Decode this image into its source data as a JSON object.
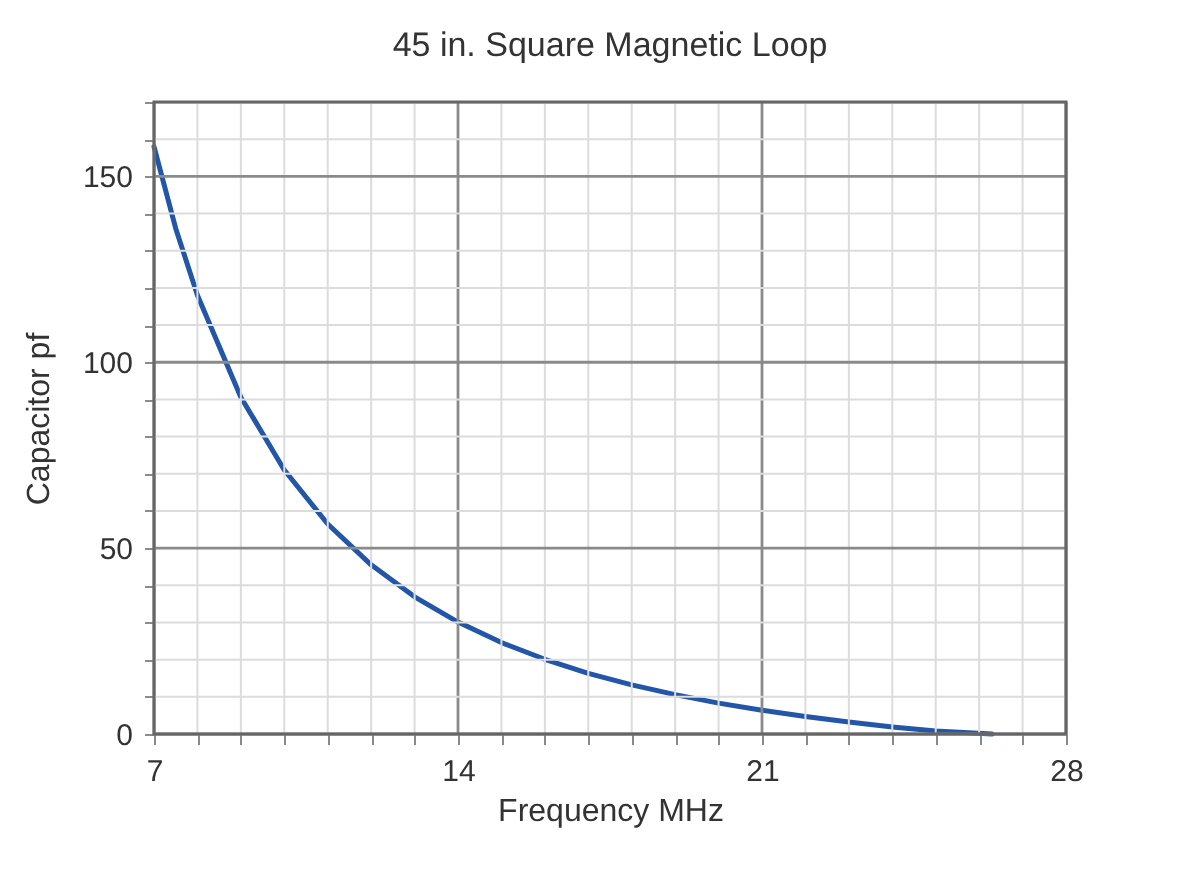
{
  "chart_data": {
    "type": "line",
    "title": "45 in. Square Magnetic Loop",
    "xlabel": "Frequency MHz",
    "ylabel": "Capacitor pf",
    "x": [
      7,
      7.5,
      8,
      9,
      10,
      11,
      12,
      13,
      14,
      15,
      16,
      17,
      18,
      19,
      20,
      21,
      22,
      23,
      24,
      25,
      26.3
    ],
    "series": [
      {
        "color": "#2456a8",
        "values": [
          158,
          136,
          118,
          90.6,
          71,
          56.5,
          45.5,
          36.9,
          30.1,
          24.6,
          20.1,
          16.3,
          13.2,
          10.6,
          8.3,
          6.4,
          4.7,
          3.2,
          1.9,
          0.8,
          0
        ]
      }
    ],
    "xlim": [
      7,
      28
    ],
    "ylim": [
      0,
      170
    ],
    "xticks": [
      7,
      {
        "value": 8,
        "label": null
      },
      {
        "value": 9,
        "label": null
      },
      {
        "value": 10,
        "label": null
      },
      {
        "value": 11,
        "label": null
      },
      {
        "value": 12,
        "label": null
      },
      {
        "value": 13,
        "label": null
      },
      14,
      {
        "value": 15,
        "label": null
      },
      {
        "value": 16,
        "label": null
      },
      {
        "value": 17,
        "label": null
      },
      {
        "value": 18,
        "label": null
      },
      {
        "value": 19,
        "label": null
      },
      {
        "value": 20,
        "label": null
      },
      21,
      {
        "value": 22,
        "label": null
      },
      {
        "value": 23,
        "label": null
      },
      {
        "value": 24,
        "label": null
      },
      {
        "value": 25,
        "label": null
      },
      {
        "value": 26,
        "label": null
      },
      {
        "value": 27,
        "label": null
      },
      28
    ],
    "yticks": [
      0,
      {
        "value": 10,
        "label": null
      },
      {
        "value": 20,
        "label": null
      },
      {
        "value": 30,
        "label": null
      },
      {
        "value": 40,
        "label": null
      },
      50,
      {
        "value": 60,
        "label": null
      },
      {
        "value": 70,
        "label": null
      },
      {
        "value": 80,
        "label": null
      },
      {
        "value": 90,
        "label": null
      },
      100,
      {
        "value": 110,
        "label": null
      },
      {
        "value": 120,
        "label": null
      },
      {
        "value": 130,
        "label": null
      },
      {
        "value": 140,
        "label": null
      },
      150,
      {
        "value": 160,
        "label": null
      },
      {
        "value": 170,
        "label": null
      }
    ],
    "grid": true,
    "marker": "none",
    "line_style": "solid",
    "legend": false
  }
}
